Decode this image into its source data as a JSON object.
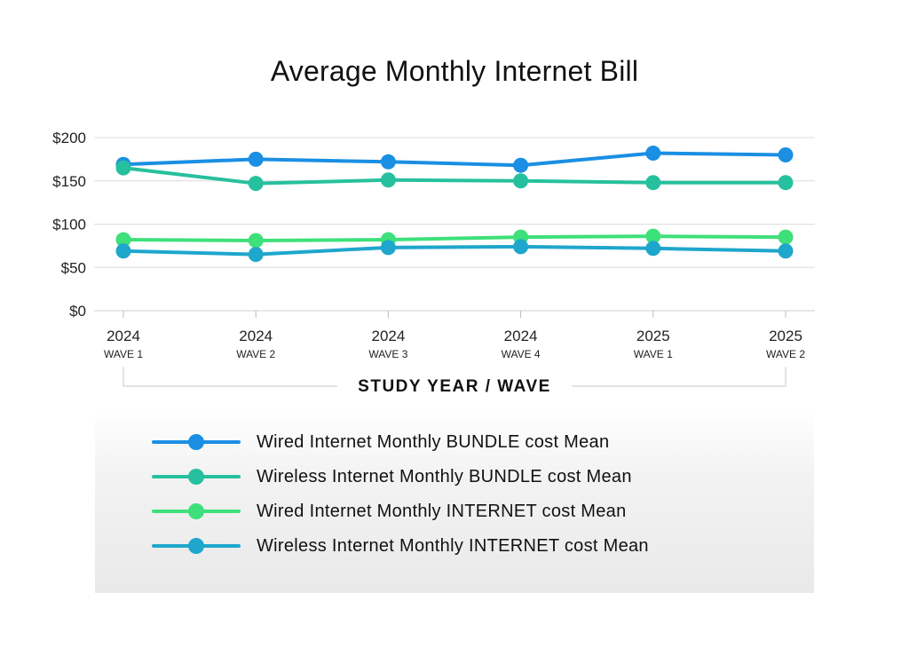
{
  "chart_data": {
    "type": "line",
    "title": "Average Monthly Internet Bill",
    "xlabel": "STUDY YEAR /  WAVE",
    "ylabel": "",
    "ylim": [
      0,
      200
    ],
    "y_ticks": [
      "$0",
      "$50",
      "$100",
      "$150",
      "$200"
    ],
    "y_tick_values": [
      0,
      50,
      100,
      150,
      200
    ],
    "categories": [
      {
        "year": "2024",
        "wave": "WAVE 1"
      },
      {
        "year": "2024",
        "wave": "WAVE 2"
      },
      {
        "year": "2024",
        "wave": "WAVE 3"
      },
      {
        "year": "2024",
        "wave": "WAVE 4"
      },
      {
        "year": "2025",
        "wave": "WAVE 1"
      },
      {
        "year": "2025",
        "wave": "WAVE 2"
      }
    ],
    "grid": true,
    "legend_position": "bottom",
    "series": [
      {
        "name": "Wired Internet Monthly BUNDLE cost Mean",
        "color": "#1a8fe3",
        "values": [
          169,
          175,
          172,
          168,
          182,
          180
        ]
      },
      {
        "name": "Wireless Internet Monthly BUNDLE cost Mean",
        "color": "#27c09e",
        "values": [
          165,
          147,
          151,
          150,
          148,
          148
        ]
      },
      {
        "name": "Wired Internet Monthly INTERNET cost Mean",
        "color": "#3ee07a",
        "values": [
          82,
          81,
          82,
          85,
          86,
          85
        ]
      },
      {
        "name": "Wireless Internet Monthly INTERNET cost Mean",
        "color": "#1fa6cc",
        "values": [
          69,
          65,
          73,
          74,
          72,
          69
        ]
      }
    ]
  }
}
